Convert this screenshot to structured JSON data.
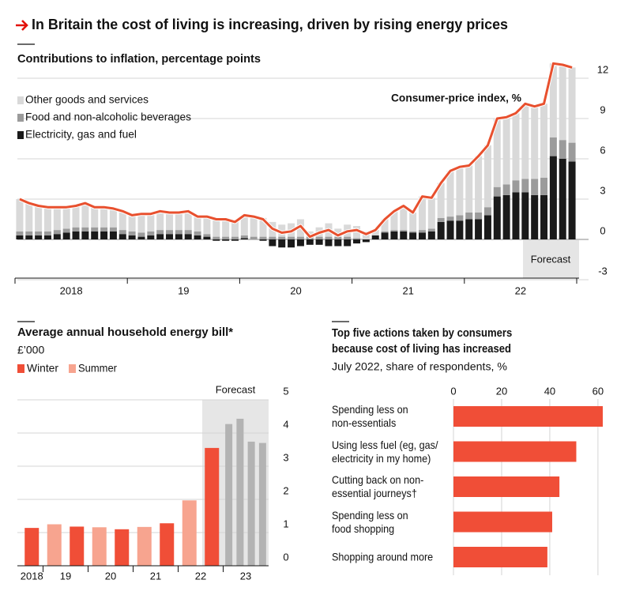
{
  "title": "In Britain the cost of living is increasing, driven by rising energy prices",
  "chart_data": [
    {
      "type": "stacked_bar",
      "title": "Contributions to inflation, percentage points",
      "annotation": "Forecast",
      "categories": [
        null,
        null,
        null,
        null,
        null,
        null,
        "2018",
        null,
        null,
        null,
        null,
        null,
        null,
        null,
        null,
        null,
        null,
        null,
        "19",
        null,
        null,
        null,
        null,
        null,
        null,
        null,
        null,
        null,
        null,
        null,
        "20",
        null,
        null,
        null,
        null,
        null,
        null,
        null,
        null,
        null,
        null,
        null,
        "21",
        null,
        null,
        null,
        null,
        null,
        null,
        null,
        null,
        null,
        null,
        null,
        "22",
        null,
        null,
        null,
        null,
        null
      ],
      "series": [
        {
          "name": "Other goods and services",
          "type": "bar",
          "color": "#d9d9d9",
          "values": [
            2.4,
            2.1,
            1.9,
            1.8,
            1.7,
            1.6,
            1.6,
            1.8,
            1.5,
            1.5,
            1.4,
            1.4,
            1.2,
            1.4,
            1.3,
            1.4,
            1.3,
            1.3,
            1.4,
            1.1,
            1.3,
            1.4,
            1.4,
            1.2,
            1.5,
            1.5,
            1.4,
            1.1,
            0.9,
            1.0,
            1.3,
            0.4,
            0.7,
            1.0,
            0.6,
            0.9,
            0.9,
            0.6,
            0.4,
            0.9,
            1.4,
            1.8,
            1.4,
            2.5,
            2.3,
            2.6,
            3.4,
            3.6,
            3.5,
            4.2,
            4.6,
            5.1,
            5.0,
            5.0,
            5.6,
            5.4,
            5.5,
            5.5,
            5.6,
            5.6
          ]
        },
        {
          "name": "Food and non-alcoholic beverages",
          "type": "bar",
          "color": "#9b9b9b",
          "values": [
            0.3,
            0.3,
            0.3,
            0.3,
            0.3,
            0.3,
            0.3,
            0.3,
            0.3,
            0.3,
            0.3,
            0.3,
            0.3,
            0.3,
            0.3,
            0.3,
            0.3,
            0.3,
            0.3,
            0.3,
            0.2,
            0.2,
            0.2,
            0.2,
            0.2,
            0.2,
            0.2,
            0.2,
            0.2,
            0.2,
            0.2,
            0.2,
            0.2,
            0.2,
            0.2,
            0.2,
            0.1,
            0.0,
            0.0,
            0.1,
            0.1,
            0.1,
            0.1,
            0.2,
            0.2,
            0.3,
            0.3,
            0.4,
            0.5,
            0.5,
            0.6,
            0.7,
            0.8,
            0.9,
            1.0,
            1.2,
            1.3,
            1.4,
            1.4,
            1.4
          ]
        },
        {
          "name": "Electricity, gas and fuel",
          "type": "bar",
          "color": "#1a1a1a",
          "values": [
            0.3,
            0.3,
            0.3,
            0.3,
            0.4,
            0.5,
            0.6,
            0.6,
            0.6,
            0.6,
            0.6,
            0.4,
            0.3,
            0.2,
            0.3,
            0.4,
            0.4,
            0.4,
            0.4,
            0.3,
            0.2,
            -0.1,
            -0.1,
            -0.1,
            0.1,
            0.0,
            -0.1,
            -0.5,
            -0.6,
            -0.6,
            -0.5,
            -0.4,
            -0.4,
            -0.5,
            -0.5,
            -0.5,
            -0.3,
            -0.2,
            0.3,
            0.5,
            0.6,
            0.6,
            0.5,
            0.5,
            0.6,
            1.3,
            1.4,
            1.4,
            1.5,
            1.5,
            1.8,
            3.2,
            3.3,
            3.5,
            3.5,
            3.3,
            3.3,
            6.2,
            6.0,
            5.8
          ]
        },
        {
          "name": "Consumer-price index, %",
          "type": "line",
          "color": "#e8502e",
          "values": [
            3.0,
            2.7,
            2.5,
            2.4,
            2.4,
            2.4,
            2.5,
            2.7,
            2.4,
            2.4,
            2.3,
            2.1,
            1.8,
            1.9,
            1.9,
            2.1,
            2.0,
            2.0,
            2.1,
            1.7,
            1.7,
            1.5,
            1.5,
            1.3,
            1.8,
            1.7,
            1.5,
            0.8,
            0.5,
            0.6,
            1.0,
            0.2,
            0.5,
            0.7,
            0.3,
            0.6,
            0.7,
            0.4,
            0.7,
            1.5,
            2.1,
            2.5,
            2.0,
            3.2,
            3.1,
            4.2,
            5.1,
            5.4,
            5.5,
            6.2,
            7.0,
            9.0,
            9.1,
            9.4,
            10.1,
            9.9,
            10.1,
            13.1,
            13.0,
            12.8
          ]
        }
      ],
      "ylim": [
        -3,
        13.5
      ],
      "yticks": [
        -3,
        0,
        3,
        6,
        9,
        12
      ],
      "grid": true
    },
    {
      "type": "bar",
      "title": "Average annual household energy bill*",
      "subtitle": "£’000",
      "annotation": "Forecast",
      "legend": [
        {
          "name": "Winter",
          "color": "#f04e37"
        },
        {
          "name": "Summer",
          "color": "#f7a48f"
        }
      ],
      "categories": [
        "2018",
        "19",
        null,
        "20",
        null,
        "21",
        null,
        "22",
        null,
        "23",
        null,
        null,
        null
      ],
      "values": [
        1.14,
        1.25,
        1.18,
        1.16,
        1.1,
        1.17,
        1.28,
        1.97,
        3.55,
        4.27,
        4.43,
        3.74,
        3.7
      ],
      "colors": [
        "#f04e37",
        "#f7a48f",
        "#f04e37",
        "#f7a48f",
        "#f04e37",
        "#f7a48f",
        "#f04e37",
        "#f7a48f",
        "#f04e37",
        "#b3b3b3",
        "#b3b3b3",
        "#b3b3b3",
        "#b3b3b3"
      ],
      "ylim": [
        0,
        5
      ],
      "yticks": [
        0,
        1,
        2,
        3,
        4,
        5
      ],
      "grid": true
    },
    {
      "type": "hbar",
      "title": "Top five actions taken by consumers because cost of living has increased",
      "subtitle": "July 2022, share of respondents, %",
      "categories": [
        "Spending less on\nnon-essentials",
        "Using less fuel (eg, gas/\nelectricity in my home)",
        "Cutting back on non-\nessential journeys†",
        "Spending less on\nfood shopping",
        "Shopping around more"
      ],
      "values": [
        62,
        51,
        44,
        41,
        39
      ],
      "color": "#f04e37",
      "xlim": [
        0,
        62
      ],
      "xticks": [
        0,
        20,
        40,
        60
      ],
      "grid": true
    }
  ]
}
